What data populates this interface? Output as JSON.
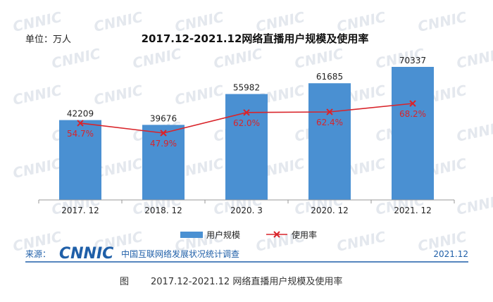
{
  "unit_label": "单位：万人",
  "chart_data": {
    "type": "bar",
    "title": "2017.12-2021.12网络直播用户规模及使用率",
    "categories": [
      "2017. 12",
      "2018. 12",
      "2020. 3",
      "2020. 12",
      "2021. 12"
    ],
    "series": [
      {
        "name": "用户规模",
        "type": "bar",
        "values": [
          42209,
          39676,
          55982,
          61685,
          70337
        ],
        "labels": [
          "42209",
          "39676",
          "55982",
          "61685",
          "70337"
        ],
        "color": "#4a90d2"
      },
      {
        "name": "使用率",
        "type": "line",
        "values": [
          54.7,
          47.9,
          62.0,
          62.4,
          68.2
        ],
        "labels": [
          "54.7%",
          "47.9%",
          "62.0%",
          "62.4%",
          "68.2%"
        ],
        "color": "#d9242a"
      }
    ],
    "xlabel": "",
    "ylabel": "",
    "legend_position": "bottom",
    "grid": false
  },
  "footer": {
    "source_label": "来源：",
    "logo_text": "CNNIC",
    "org_name": "中国互联网络发展状况统计调查",
    "date": "2021.12"
  },
  "caption": {
    "prefix": "图",
    "text": "2017.12-2021.12 网络直播用户规模及使用率"
  },
  "watermark_text": "CNNIC",
  "colors": {
    "bar": "#4a90d2",
    "line": "#d9242a",
    "rule": "#1f5fa8",
    "logo": "#1f5fa8"
  }
}
